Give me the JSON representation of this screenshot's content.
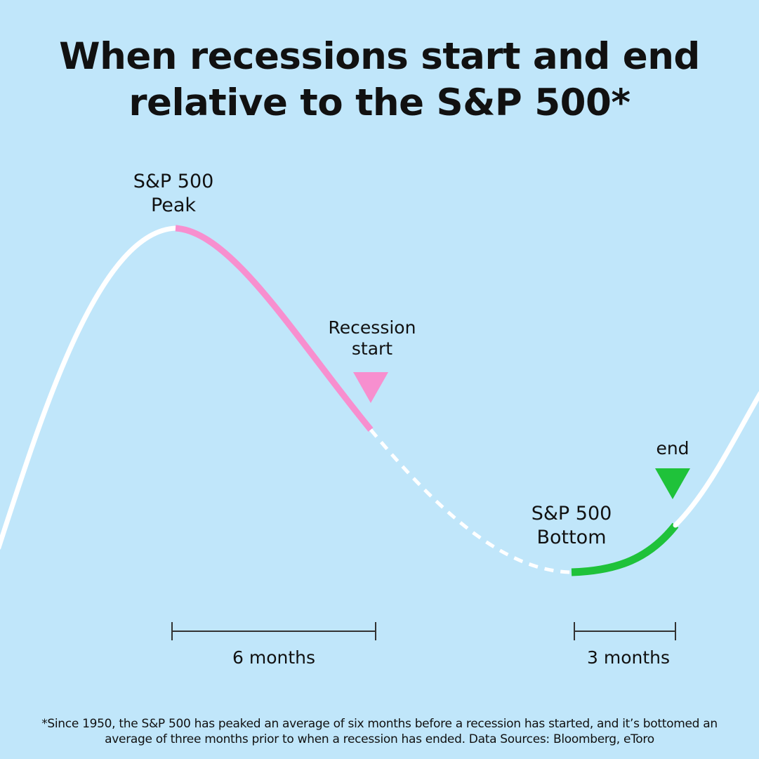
{
  "title": {
    "line1": "When recessions start and end",
    "line2": "relative to the S&P 500*"
  },
  "labels": {
    "peak_line1": "S&P 500",
    "peak_line2": "Peak",
    "recession_start_line1": "Recession",
    "recession_start_line2": "start",
    "bottom_line1": "S&P 500",
    "bottom_line2": "Bottom",
    "end": "end"
  },
  "ranges": {
    "peak_to_start": "6 months",
    "bottom_to_end": "3 months"
  },
  "footnote": {
    "line1": "*Since 1950, the S&P 500 has peaked an average of six months before a recession has started, and it’s bottomed an",
    "line2": "average of three months prior to when a recession has ended. Data Sources: Bloomberg, eToro"
  },
  "colors": {
    "background": "#c0e6fa",
    "curve": "#ffffff",
    "decline": "#f78fcf",
    "recovery": "#1fc23a",
    "text": "#111111",
    "bracket": "#333333"
  },
  "icons": {
    "recession_start_marker": "triangle-down-icon",
    "recession_end_marker": "triangle-down-icon"
  }
}
